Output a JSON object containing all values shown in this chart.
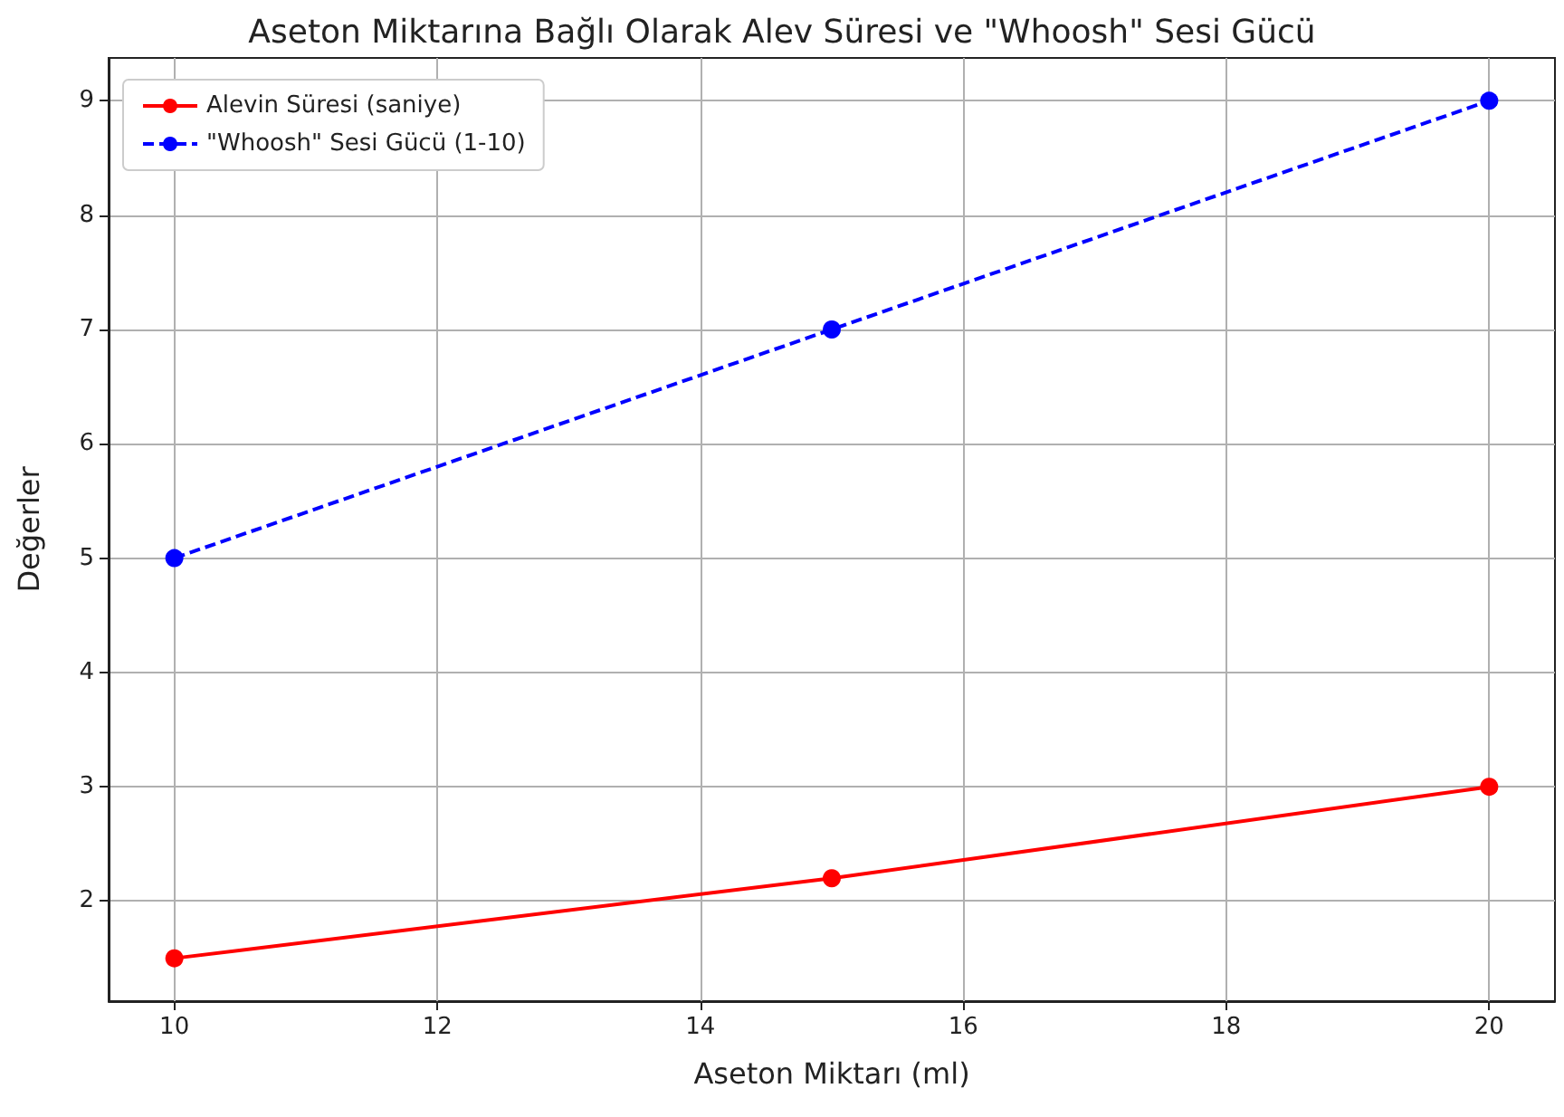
{
  "chart_data": {
    "type": "line",
    "title": "Aseton Miktarına Bağlı Olarak Alev Süresi ve \"Whoosh\" Sesi Gücü",
    "xlabel": "Aseton Miktarı (ml)",
    "ylabel": "Değerler",
    "x": [
      10,
      15,
      20
    ],
    "series": [
      {
        "name": "Alevin Süresi (saniye)",
        "color": "#ff0000",
        "values": [
          1.5,
          2.2,
          3
        ],
        "line_style": "solid"
      },
      {
        "name": "\"Whoosh\" Sesi Gücü (1-10)",
        "color": "#0000ff",
        "values": [
          5,
          7,
          9
        ],
        "line_style": "dashed"
      }
    ],
    "xlim": [
      9.5,
      20.5
    ],
    "xticks": [
      10,
      12,
      14,
      16,
      18,
      20
    ],
    "ylim": [
      1.125,
      9.375
    ],
    "yticks": [
      2,
      3,
      4,
      5,
      6,
      7,
      8,
      9
    ],
    "grid": true,
    "legend": "top left",
    "marker": "circle"
  }
}
